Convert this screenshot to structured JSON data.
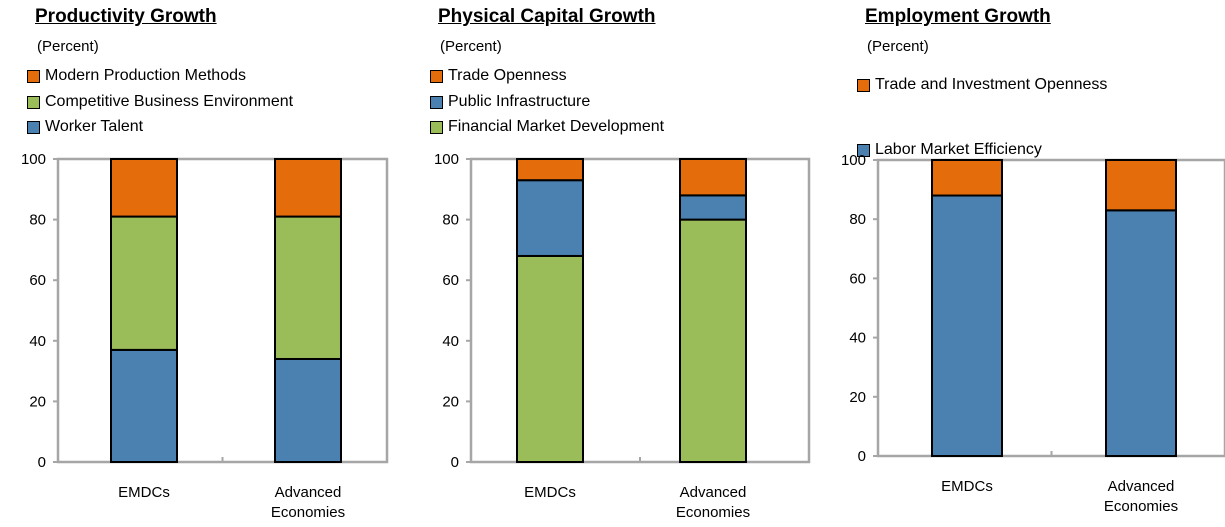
{
  "chart_data": [
    {
      "type": "bar",
      "stacked": true,
      "title": "Productivity Growth",
      "subtitle": "(Percent)",
      "categories": [
        "EMDCs",
        "Advanced Economies"
      ],
      "category_lines": [
        [
          "EMDCs"
        ],
        [
          "Advanced",
          "Economies"
        ]
      ],
      "ylim": [
        0,
        100
      ],
      "yticks": [
        "0",
        "20",
        "40",
        "60",
        "80",
        "100"
      ],
      "grid": false,
      "legend_position": "top-left",
      "series": [
        {
          "name": "Worker Talent",
          "values": [
            37,
            34
          ],
          "color": "#4a81b1"
        },
        {
          "name": "Competitive Business Environment",
          "values": [
            44,
            47
          ],
          "color": "#9bbd59"
        },
        {
          "name": "Modern Production Methods",
          "values": [
            19,
            19
          ],
          "color": "#e46c0a"
        }
      ],
      "legend_order": [
        "Modern Production Methods",
        "Competitive Business Environment",
        "Worker Talent"
      ]
    },
    {
      "type": "bar",
      "stacked": true,
      "title": "Physical Capital Growth",
      "subtitle": "(Percent)",
      "categories": [
        "EMDCs",
        "Advanced Economies"
      ],
      "category_lines": [
        [
          "EMDCs"
        ],
        [
          "Advanced",
          "Economies"
        ]
      ],
      "ylim": [
        0,
        100
      ],
      "yticks": [
        "0",
        "20",
        "40",
        "60",
        "80",
        "100"
      ],
      "grid": false,
      "legend_position": "top-left",
      "series": [
        {
          "name": "Financial Market Development",
          "values": [
            68,
            80
          ],
          "color": "#9bbd59"
        },
        {
          "name": "Public Infrastructure",
          "values": [
            25,
            8
          ],
          "color": "#4a81b1"
        },
        {
          "name": "Trade Openness",
          "values": [
            7,
            12
          ],
          "color": "#e46c0a"
        }
      ],
      "legend_order": [
        "Trade Openness",
        "Public Infrastructure",
        "Financial Market Development"
      ]
    },
    {
      "type": "bar",
      "stacked": true,
      "title": "Employment Growth",
      "subtitle": "(Percent)",
      "categories": [
        "EMDCs",
        "Advanced Economies"
      ],
      "category_lines": [
        [
          "EMDCs"
        ],
        [
          "Advanced",
          "Economies"
        ]
      ],
      "ylim": [
        0,
        100
      ],
      "yticks": [
        "0",
        "20",
        "40",
        "60",
        "80",
        "100"
      ],
      "grid": false,
      "legend_position": "top-left",
      "series": [
        {
          "name": "Labor Market Efficiency",
          "values": [
            88,
            83
          ],
          "color": "#4a81b1"
        },
        {
          "name": "Trade and Investment Openness",
          "values": [
            12,
            17
          ],
          "color": "#e46c0a"
        }
      ],
      "legend_order": [
        "Trade and Investment Openness",
        "Labor Market Efficiency"
      ]
    }
  ]
}
